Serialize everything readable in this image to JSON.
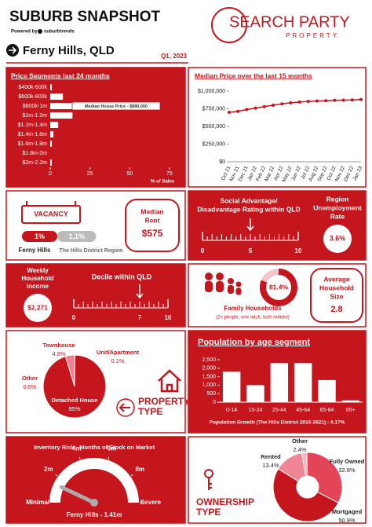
{
  "header": {
    "title": "SUBURB SNAPSHOT",
    "powered_by": "Powered by",
    "powered_brand": "suburbtrends",
    "logo": "SEARCH PARTY",
    "logo_sub": "PROPERTY"
  },
  "location": {
    "suburb": "Ferny Hills, QLD",
    "period": "Q1, 2023"
  },
  "chart_data": [
    {
      "type": "bar",
      "orientation": "horizontal",
      "title": "Price Segments last 24 months",
      "categories": [
        "$400k-600k",
        "$600k-800k",
        "$800k-1m",
        "$1m-1.2m",
        "$1.2m-1.4m",
        "$1.4m-1.6m",
        "$1.6m-1.8m",
        "$1.8m-2m",
        "$2m-2.2m"
      ],
      "values": [
        1,
        8,
        68,
        14,
        5,
        2,
        1,
        0,
        1
      ],
      "color": "#ffffff",
      "xlim": [
        0,
        80
      ],
      "xticks": [
        0,
        25,
        50,
        75
      ],
      "xlabel": "% of Sales",
      "annotation": "Median House Price - $880,000"
    },
    {
      "type": "line",
      "title": "Median Price over the last 15 months",
      "categories": [
        "Oct 21",
        "Nov 21",
        "Dec 21",
        "Jan 22",
        "Feb 22",
        "Mar 22",
        "Apr 22",
        "May 22",
        "Jun 22",
        "Jul 22",
        "Aug 22",
        "Sep 22",
        "Oct 22",
        "Nov 22",
        "Dec 22",
        "Jan 23"
      ],
      "values": [
        700000,
        715000,
        740000,
        760000,
        780000,
        800000,
        820000,
        835000,
        845000,
        855000,
        860000,
        865000,
        870000,
        872000,
        875000,
        880000
      ],
      "color": "#c4161c",
      "ylim": [
        0,
        1000000
      ],
      "yticks": [
        {
          "value": 0,
          "label": "$0"
        },
        {
          "value": 250000,
          "label": "$250,000"
        },
        {
          "value": 500000,
          "label": "$500,000"
        },
        {
          "value": 750000,
          "label": "$750,000"
        },
        {
          "value": 1000000,
          "label": "$1,000,000"
        }
      ]
    },
    {
      "type": "pie",
      "title_lines": [
        "PROPERTY",
        "TYPE"
      ],
      "categories": [
        "Townhouse",
        "Unit/Apartment",
        "Other",
        "Detached House"
      ],
      "values": [
        4.8,
        0.1,
        0.0,
        95
      ],
      "value_labels": [
        "4.8%",
        "0.1%",
        "0.0%",
        "95%"
      ],
      "colors": [
        "#f07f8f",
        "#f7b6bf",
        "#fbd3d8",
        "#c4161c"
      ]
    },
    {
      "type": "bar",
      "orientation": "vertical",
      "title": "Population by age segment",
      "categories": [
        "0-14",
        "15-24",
        "25-44",
        "45-64",
        "65-84",
        "85+"
      ],
      "values": [
        1800,
        1000,
        2300,
        2300,
        1300,
        100
      ],
      "color": "#ffffff",
      "ylim": [
        0,
        2500
      ],
      "yticks": [
        0,
        500,
        {
          "value": 1000,
          "label": "1,000"
        },
        {
          "value": 1500,
          "label": "1,500"
        },
        {
          "value": 2000,
          "label": "2,000"
        },
        {
          "value": 2500,
          "label": "2,500"
        }
      ],
      "footnote": "Population Growth (The Hills District 2016-2021) : 4.17%"
    },
    {
      "type": "pie",
      "donut": true,
      "title_lines": [
        "OWNERSHIP",
        "TYPE"
      ],
      "categories": [
        "Other",
        "Fully Owned",
        "Mortgaged",
        "Rented"
      ],
      "values": [
        2.4,
        32.8,
        50.9,
        13.4
      ],
      "value_labels": [
        "2.4%",
        "32.8%",
        "50.9%",
        "13.4%"
      ],
      "colors": [
        "#f7b6bf",
        "#e34458",
        "#c4161c",
        "#f08595"
      ]
    }
  ],
  "vacancy": {
    "sign": "VACANCY",
    "items": [
      {
        "name": "Ferny Hills",
        "value": 1,
        "label": "1%"
      },
      {
        "name": "The Hills District Region",
        "value": 1.1,
        "label": "1.1%"
      }
    ]
  },
  "median_rent": {
    "title_lines": [
      "Median",
      "Rent"
    ],
    "value": "$575"
  },
  "social_rating": {
    "title_lines": [
      "Social Advantage/",
      "Disadvantage Rating within QLD"
    ],
    "scale": [
      0,
      10
    ],
    "value": 5
  },
  "unemployment": {
    "title_lines": [
      "Region",
      "Unemployment",
      "Rate"
    ],
    "value": "3.6%"
  },
  "income": {
    "title_lines": [
      "Weekly",
      "Household",
      "income"
    ],
    "value": "$2,271"
  },
  "decile": {
    "title": "Decile within QLD",
    "scale": [
      0,
      10
    ],
    "value": 7
  },
  "family": {
    "value": 81.4,
    "label": "81.4%",
    "title": "Family Households",
    "note": "(2+ people, one adult, both related)"
  },
  "household_size": {
    "title_lines": [
      "Average",
      "Household",
      "Size"
    ],
    "value": "2.8"
  },
  "inventory": {
    "title": "Inventory Risk - Months of Stock on Market",
    "ticks": [
      {
        "value": 0,
        "label": "Minimal"
      },
      {
        "value": 2,
        "label": "2m"
      },
      {
        "value": 4,
        "label": "4m"
      },
      {
        "value": 6,
        "label": "6m"
      },
      {
        "value": 8,
        "label": "8m"
      },
      {
        "value": 10,
        "label": "Severe"
      }
    ],
    "value": 1.41,
    "value_label": "Ferny Hills - 1.41m"
  }
}
